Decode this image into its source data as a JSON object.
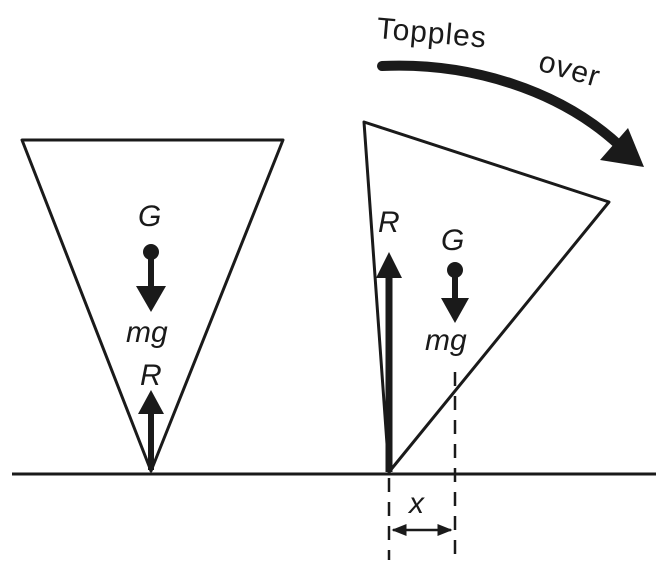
{
  "labels": {
    "left_centre": "G",
    "left_weight": "mg",
    "left_reaction": "R",
    "right_reaction": "R",
    "right_centre": "G",
    "right_weight": "mg",
    "offset": "x",
    "caption_word1": "Topples",
    "caption_word2": "over"
  },
  "colors": {
    "ink": "#1a1a1a",
    "background": "#ffffff"
  }
}
